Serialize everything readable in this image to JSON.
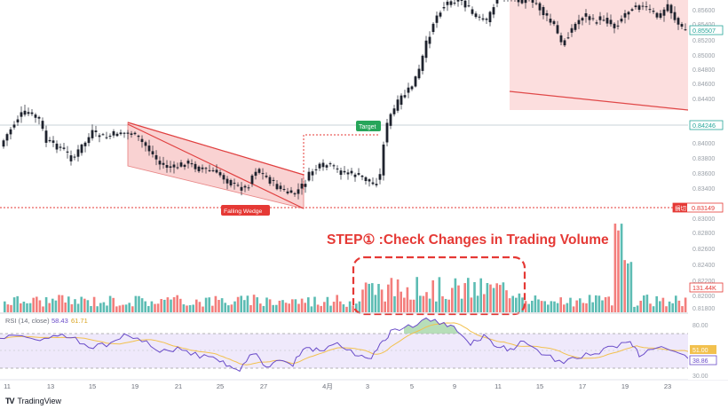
{
  "chart_data": {
    "type": "candlestick",
    "annotation_title": "STEP① :Check Changes in Trading Volume",
    "pattern_label": "Falling Wedge",
    "target_label": "Target",
    "price_axis": {
      "ylim": [
        0.818,
        0.858
      ],
      "ticks": [
        "0.85600",
        "0.85400",
        "0.85200",
        "0.85000",
        "0.84800",
        "0.84600",
        "0.84400",
        "0.84000",
        "0.83800",
        "0.83600",
        "0.83400",
        "0.83000",
        "0.82800",
        "0.82600",
        "0.82400",
        "0.82200",
        "0.82000",
        "0.81800"
      ],
      "current_price": "0.85507",
      "target_price": "0.84246",
      "stop_label": "損切",
      "stop_price": "0.83149",
      "volume_value": "131.44K"
    },
    "rsi": {
      "label": "RSI (14, close)",
      "value_1": "58.43",
      "value_2": "61.71",
      "axis_ticks": [
        "80.00",
        "30.00"
      ],
      "current_1": "51.00",
      "current_2": "38.86",
      "upper_band": 70,
      "lower_band": 30
    },
    "x_axis_ticks": [
      "11",
      "13",
      "15",
      "19",
      "21",
      "25",
      "27",
      "4月",
      "3",
      "5",
      "9",
      "11",
      "15",
      "17",
      "19",
      "23"
    ],
    "volume_colors": [
      "#26a69a",
      "#ef5350"
    ],
    "accent_red": "#e53935",
    "wedge_fill": "#f8c6c6",
    "brand": "TradingView"
  }
}
